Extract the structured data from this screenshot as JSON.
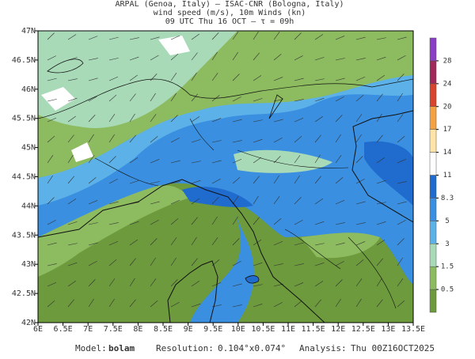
{
  "header": {
    "line1": "ARPAL (Genoa, Italy)  —  ISAC-CNR (Bologna, Italy)",
    "line2": "wind speed (m/s), 10m Winds (kn)",
    "line3": "09 UTC Thu 16 OCT  —  τ = 09h"
  },
  "map": {
    "xlim": [
      6,
      13.5
    ],
    "ylim": [
      42,
      47
    ],
    "xticks": [
      {
        "value": 6,
        "label": "6E"
      },
      {
        "value": 6.5,
        "label": "6.5E"
      },
      {
        "value": 7,
        "label": "7E"
      },
      {
        "value": 7.5,
        "label": "7.5E"
      },
      {
        "value": 8,
        "label": "8E"
      },
      {
        "value": 8.5,
        "label": "8.5E"
      },
      {
        "value": 9,
        "label": "9E"
      },
      {
        "value": 9.5,
        "label": "9.5E"
      },
      {
        "value": 10,
        "label": "10E"
      },
      {
        "value": 10.5,
        "label": "10.5E"
      },
      {
        "value": 11,
        "label": "11E"
      },
      {
        "value": 11.5,
        "label": "11.5E"
      },
      {
        "value": 12,
        "label": "12E"
      },
      {
        "value": 12.5,
        "label": "12.5E"
      },
      {
        "value": 13,
        "label": "13E"
      },
      {
        "value": 13.5,
        "label": "13.5E"
      }
    ],
    "yticks": [
      {
        "value": 42,
        "label": "42N"
      },
      {
        "value": 42.5,
        "label": "42.5N"
      },
      {
        "value": 43,
        "label": "43N"
      },
      {
        "value": 43.5,
        "label": "43.5N"
      },
      {
        "value": 44,
        "label": "44N"
      },
      {
        "value": 44.5,
        "label": "44.5N"
      },
      {
        "value": 45,
        "label": "45N"
      },
      {
        "value": 45.5,
        "label": "45.5N"
      },
      {
        "value": 46,
        "label": "46N"
      },
      {
        "value": 46.5,
        "label": "46.5N"
      },
      {
        "value": 47,
        "label": "47N"
      }
    ]
  },
  "colorbar": {
    "levels": [
      0.5,
      1.5,
      3,
      5,
      8.3,
      11,
      14,
      17,
      20,
      24,
      28
    ],
    "colors": [
      "#6c9a3c",
      "#8dbb5f",
      "#a8dab8",
      "#5cb2e8",
      "#3a8fe0",
      "#1f6cce",
      "#ffffff",
      "#ffe4a8",
      "#f2a444",
      "#d8452e",
      "#a02a5a",
      "#8a3fc4"
    ]
  },
  "footer": {
    "model_label": "Model:",
    "model": "bolam",
    "resolution_label": "Resolution:",
    "resolution": "0.104°x0.074°",
    "analysis_label": "Analysis:",
    "analysis": "Thu  00Z16OCT2025"
  }
}
